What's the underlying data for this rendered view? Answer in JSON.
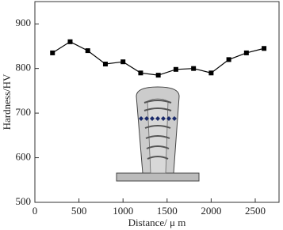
{
  "chart_data": {
    "type": "line",
    "x_label": "Distance/ μ m",
    "y_label": "Hardness/HV",
    "x": [
      200,
      400,
      600,
      800,
      1000,
      1200,
      1400,
      1600,
      1800,
      2000,
      2200,
      2400,
      2600
    ],
    "values": [
      835,
      860,
      840,
      810,
      815,
      790,
      785,
      798,
      800,
      790,
      820,
      835,
      845
    ],
    "color": "#000000",
    "xlim": [
      0,
      2770
    ],
    "xticks": [
      0,
      500,
      1000,
      1500,
      2000,
      2500
    ],
    "ylim": [
      500,
      950
    ],
    "yticks": [
      500,
      600,
      700,
      800,
      900
    ]
  }
}
